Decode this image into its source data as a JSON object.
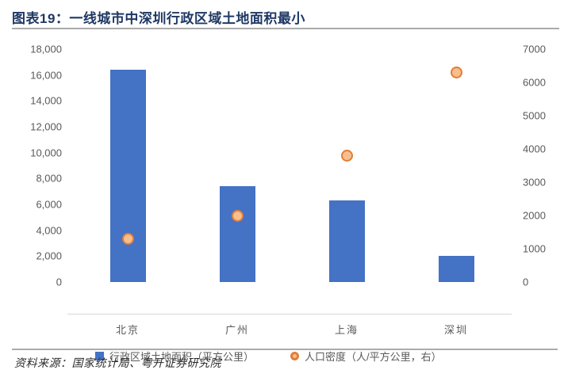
{
  "header": {
    "title": "图表19：一线城市中深圳行政区域土地面积最小"
  },
  "chart_data": {
    "type": "bar",
    "subtype": "bar-with-scatter-overlay-dual-axis",
    "title": "图表19：一线城市中深圳行政区域土地面积最小",
    "categories": [
      "北京",
      "广州",
      "上海",
      "深圳"
    ],
    "series": [
      {
        "name": "行政区域土地面积（平方公里）",
        "type": "bar",
        "axis": "left",
        "values": [
          16400,
          7400,
          6300,
          2000
        ]
      },
      {
        "name": "人口密度（人/平方公里，右）",
        "type": "scatter",
        "axis": "right",
        "values": [
          1300,
          2000,
          3800,
          6300
        ]
      }
    ],
    "left_axis": {
      "min": 0,
      "max": 18000,
      "step": 2000,
      "ticks": [
        "18,000",
        "16,000",
        "14,000",
        "12,000",
        "10,000",
        "8,000",
        "6,000",
        "4,000",
        "2,000",
        "0"
      ]
    },
    "right_axis": {
      "min": 0,
      "max": 7000,
      "step": 1000,
      "ticks": [
        "7000",
        "6000",
        "5000",
        "4000",
        "3000",
        "2000",
        "1000",
        "0"
      ]
    },
    "grid": false,
    "legend_position": "bottom",
    "xlabel": "",
    "ylabel": ""
  },
  "legend": {
    "area_label": "行政区域土地面积（平方公里）",
    "density_label": "人口密度（人/平方公里，右）"
  },
  "footer": {
    "source": "资料来源：国家统计局、粤开证券研究院"
  },
  "colors": {
    "bar_blue": "#4472C4",
    "dot_fill": "#F8BE8C",
    "dot_stroke": "#E07E3C",
    "title_navy": "#1F3864",
    "tick_gray": "#595959",
    "rule_gray": "#ABABAB"
  }
}
